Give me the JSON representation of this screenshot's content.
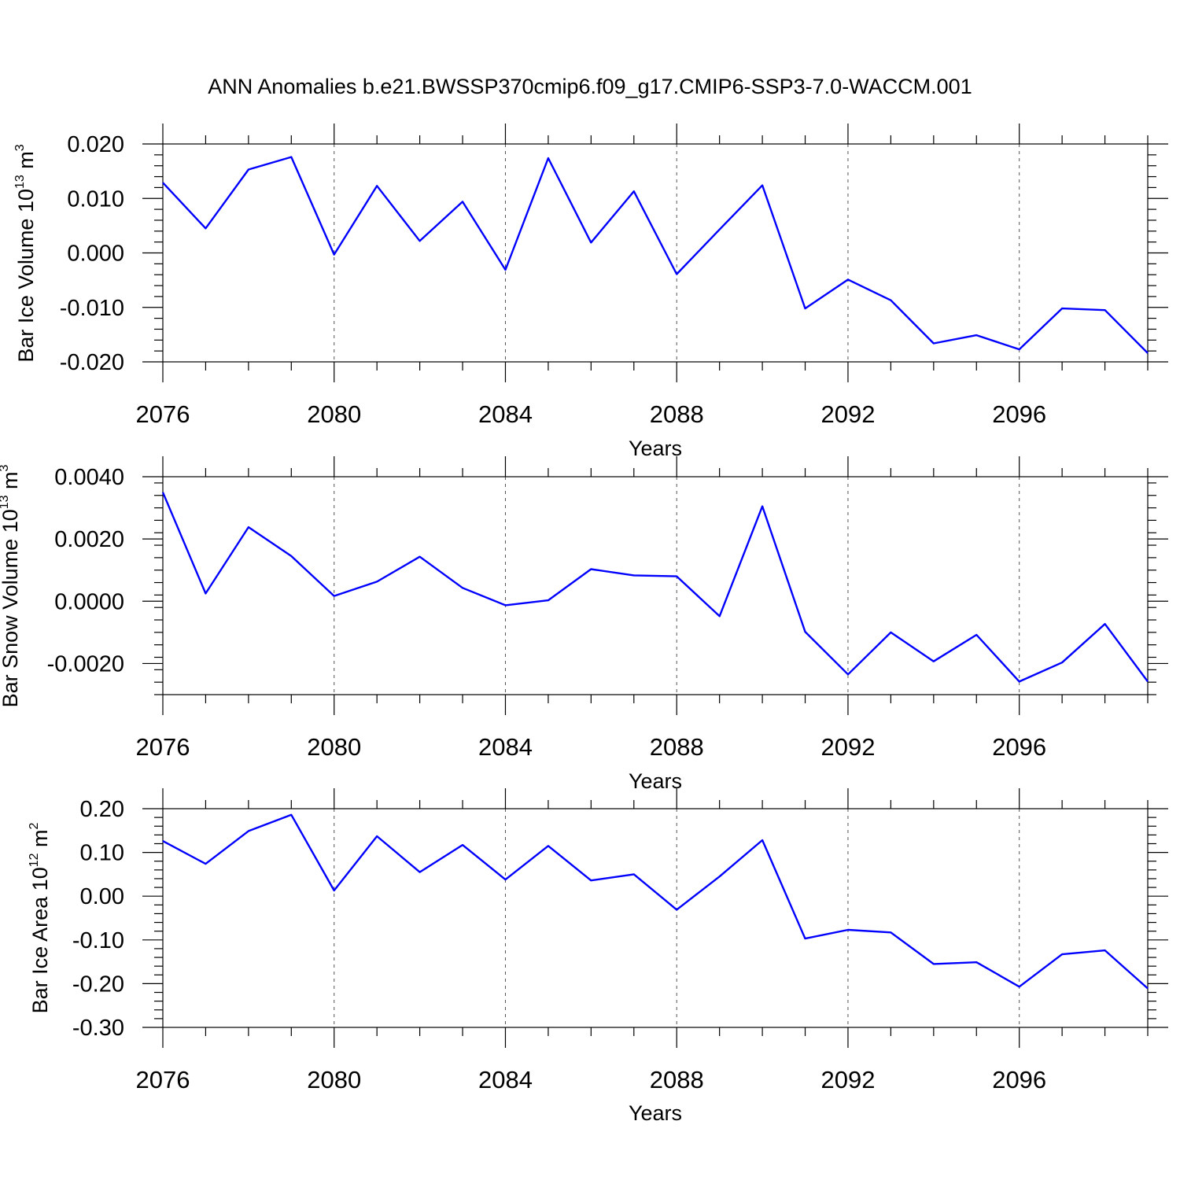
{
  "title": "ANN Anomalies b.e21.BWSSP370cmip6.f09_g17.CMIP6-SSP3-7.0-WACCM.001",
  "colors": {
    "series": "#0000ff",
    "grid": "#555555",
    "axes": "#000000"
  },
  "chart_data": [
    {
      "type": "line",
      "xlabel": "Years",
      "ylabel": {
        "prefix": "Bar Ice Volume 10",
        "exponent": "13",
        "unit": " m",
        "unit_exponent": "3"
      },
      "xlim": [
        2076,
        2099
      ],
      "ylim": [
        -0.02,
        0.02
      ],
      "xticks": [
        2076,
        2080,
        2084,
        2088,
        2092,
        2096
      ],
      "yticks": [
        {
          "value": -0.02,
          "label": "-0.020"
        },
        {
          "value": -0.01,
          "label": "-0.010"
        },
        {
          "value": 0.0,
          "label": "0.000"
        },
        {
          "value": 0.01,
          "label": "0.010"
        },
        {
          "value": 0.02,
          "label": "0.020"
        }
      ],
      "grid": "dashed vertical at x ticks",
      "x": [
        2076,
        2077,
        2078,
        2079,
        2080,
        2081,
        2082,
        2083,
        2084,
        2085,
        2086,
        2087,
        2088,
        2089,
        2090,
        2091,
        2092,
        2093,
        2094,
        2095,
        2096,
        2097,
        2098,
        2099
      ],
      "y": [
        0.0129,
        0.0045,
        0.0153,
        0.0176,
        -0.0003,
        0.0123,
        0.0022,
        0.0094,
        -0.0031,
        0.0174,
        0.0019,
        0.0113,
        -0.0039,
        0.0043,
        0.0124,
        -0.0102,
        -0.0049,
        -0.0087,
        -0.0166,
        -0.0151,
        -0.0177,
        -0.0102,
        -0.0105,
        -0.0184
      ]
    },
    {
      "type": "line",
      "xlabel": "Years",
      "ylabel": {
        "prefix": "Bar Snow Volume 10",
        "exponent": "13",
        "unit": " m",
        "unit_exponent": "3"
      },
      "xlim": [
        2076,
        2099
      ],
      "ylim": [
        -0.003,
        0.004
      ],
      "xticks": [
        2076,
        2080,
        2084,
        2088,
        2092,
        2096
      ],
      "yticks": [
        {
          "value": -0.002,
          "label": "-0.0020"
        },
        {
          "value": 0.0,
          "label": "0.0000"
        },
        {
          "value": 0.002,
          "label": "0.0020"
        },
        {
          "value": 0.004,
          "label": "0.0040"
        }
      ],
      "grid": "dashed vertical at x ticks",
      "x": [
        2076,
        2077,
        2078,
        2079,
        2080,
        2081,
        2082,
        2083,
        2084,
        2085,
        2086,
        2087,
        2088,
        2089,
        2090,
        2091,
        2092,
        2093,
        2094,
        2095,
        2096,
        2097,
        2098,
        2099
      ],
      "y": [
        0.0035,
        0.00025,
        0.00238,
        0.00145,
        0.00017,
        0.00063,
        0.00143,
        0.00043,
        -0.00013,
        3e-05,
        0.00103,
        0.00083,
        0.0008,
        -0.00048,
        0.00305,
        -0.00098,
        -0.00235,
        -0.001,
        -0.00193,
        -0.00108,
        -0.00258,
        -0.00197,
        -0.00073,
        -0.00258
      ]
    },
    {
      "type": "line",
      "xlabel": "Years",
      "ylabel": {
        "prefix": "Bar Ice Area 10",
        "exponent": "12",
        "unit": " m",
        "unit_exponent": "2"
      },
      "xlim": [
        2076,
        2099
      ],
      "ylim": [
        -0.3,
        0.2
      ],
      "xticks": [
        2076,
        2080,
        2084,
        2088,
        2092,
        2096
      ],
      "yticks": [
        {
          "value": -0.3,
          "label": "-0.30"
        },
        {
          "value": -0.2,
          "label": "-0.20"
        },
        {
          "value": -0.1,
          "label": "-0.10"
        },
        {
          "value": 0.0,
          "label": "0.00"
        },
        {
          "value": 0.1,
          "label": "0.10"
        },
        {
          "value": 0.2,
          "label": "0.20"
        }
      ],
      "grid": "dashed vertical at x ticks",
      "x": [
        2076,
        2077,
        2078,
        2079,
        2080,
        2081,
        2082,
        2083,
        2084,
        2085,
        2086,
        2087,
        2088,
        2089,
        2090,
        2091,
        2092,
        2093,
        2094,
        2095,
        2096,
        2097,
        2098,
        2099
      ],
      "y": [
        0.126,
        0.074,
        0.149,
        0.186,
        0.013,
        0.137,
        0.055,
        0.117,
        0.038,
        0.115,
        0.036,
        0.05,
        -0.031,
        0.045,
        0.128,
        -0.097,
        -0.077,
        -0.083,
        -0.155,
        -0.151,
        -0.207,
        -0.133,
        -0.124,
        -0.211
      ]
    }
  ]
}
